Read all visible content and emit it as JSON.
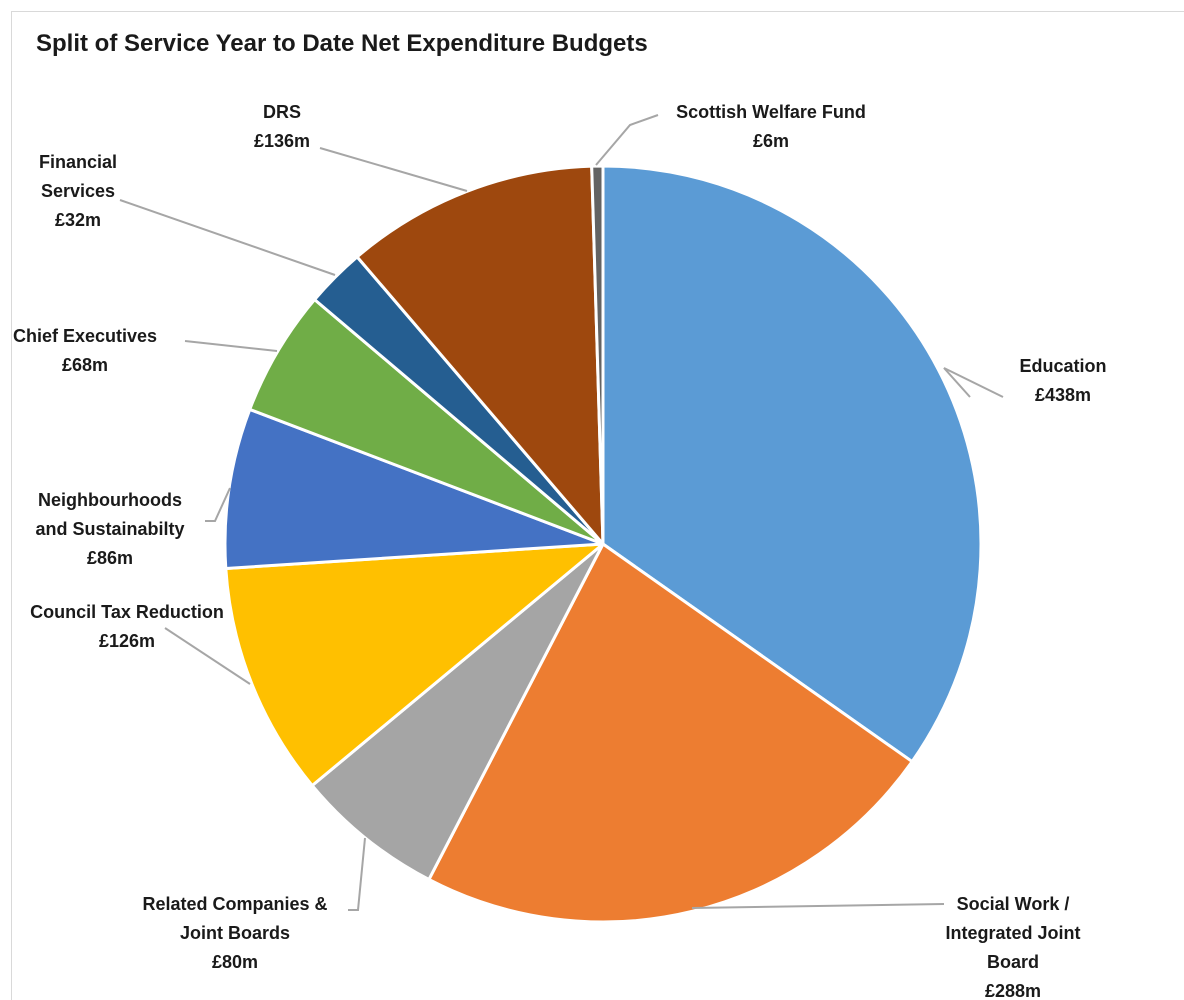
{
  "chart_data": {
    "type": "pie",
    "title": "Split of Service Year to Date Net Expenditure Budgets",
    "unit": "£m",
    "slices": [
      {
        "name": "Education",
        "value": 438,
        "value_label": "£438m",
        "color": "#5b9bd5",
        "label_lines": [
          "Education",
          "£438m"
        ]
      },
      {
        "name": "Social Work / Integrated Joint Board",
        "value": 288,
        "value_label": "£288m",
        "color": "#ed7d31",
        "label_lines": [
          "Social Work /",
          "Integrated Joint",
          "Board",
          "£288m"
        ]
      },
      {
        "name": "Related Companies & Joint Boards",
        "value": 80,
        "value_label": "£80m",
        "color": "#a5a5a5",
        "label_lines": [
          "Related Companies &",
          "Joint Boards",
          "£80m"
        ]
      },
      {
        "name": "Council Tax Reduction",
        "value": 126,
        "value_label": "£126m",
        "color": "#ffc000",
        "label_lines": [
          "Council Tax Reduction",
          "£126m"
        ]
      },
      {
        "name": "Neighbourhoods and Sustainabilty",
        "value": 86,
        "value_label": "£86m",
        "color": "#4472c4",
        "label_lines": [
          "Neighbourhoods",
          "and Sustainabilty",
          "£86m"
        ]
      },
      {
        "name": "Chief Executives",
        "value": 68,
        "value_label": "£68m",
        "color": "#70ad47",
        "label_lines": [
          "Chief Executives",
          "£68m"
        ]
      },
      {
        "name": "Financial Services",
        "value": 32,
        "value_label": "£32m",
        "color": "#255e91",
        "label_lines": [
          "Financial",
          "Services",
          "£32m"
        ]
      },
      {
        "name": "DRS",
        "value": 136,
        "value_label": "£136m",
        "color": "#9e480e",
        "label_lines": [
          "DRS",
          "£136m"
        ]
      },
      {
        "name": "Scottish Welfare Fund",
        "value": 6,
        "value_label": "£6m",
        "color": "#636363",
        "label_lines": [
          "Scottish Welfare Fund",
          "£6m"
        ]
      }
    ]
  }
}
